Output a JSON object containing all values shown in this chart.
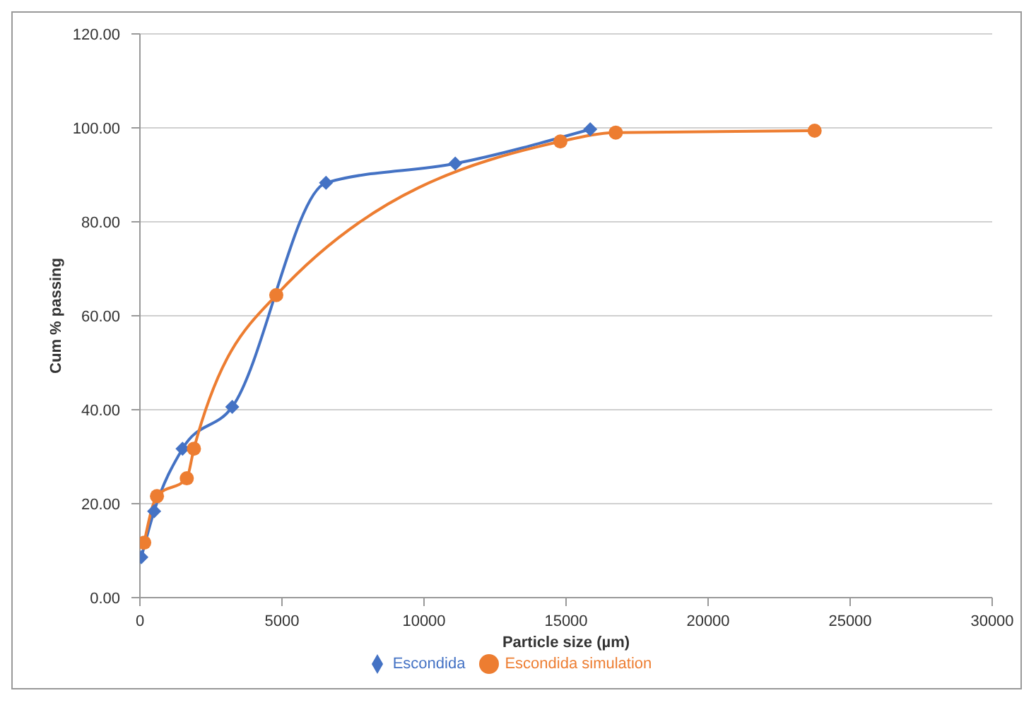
{
  "chart_data": {
    "type": "line",
    "xlabel": "Particle size (µm)",
    "ylabel": "Cum % passing",
    "xlim": [
      0,
      30000
    ],
    "xticks": [
      0,
      5000,
      10000,
      15000,
      20000,
      25000,
      30000
    ],
    "ylim": [
      0,
      120
    ],
    "yticks": [
      {
        "value": 0,
        "label": "0.00"
      },
      {
        "value": 20,
        "label": "20.00"
      },
      {
        "value": 40,
        "label": "40.00"
      },
      {
        "value": 60,
        "label": "60.00"
      },
      {
        "value": 80,
        "label": "80.00"
      },
      {
        "value": 100,
        "label": "100.00"
      },
      {
        "value": 120,
        "label": "120.00"
      }
    ],
    "grid": "y",
    "legend": "bottom",
    "series": [
      {
        "name": "Escondida",
        "color": "#4472c4",
        "marker": "diamond",
        "x": [
          50,
          500,
          1500,
          3250,
          6550,
          11100,
          15850
        ],
        "values": [
          8.6,
          18.4,
          31.7,
          40.6,
          88.3,
          92.4,
          99.7
        ]
      },
      {
        "name": "Escondida simulation",
        "color": "#ed7d31",
        "marker": "circle",
        "x": [
          150,
          600,
          1650,
          1900,
          4800,
          14800,
          16750,
          23750
        ],
        "values": [
          11.7,
          21.6,
          25.4,
          31.7,
          64.4,
          97.1,
          99,
          99.4
        ]
      }
    ]
  }
}
